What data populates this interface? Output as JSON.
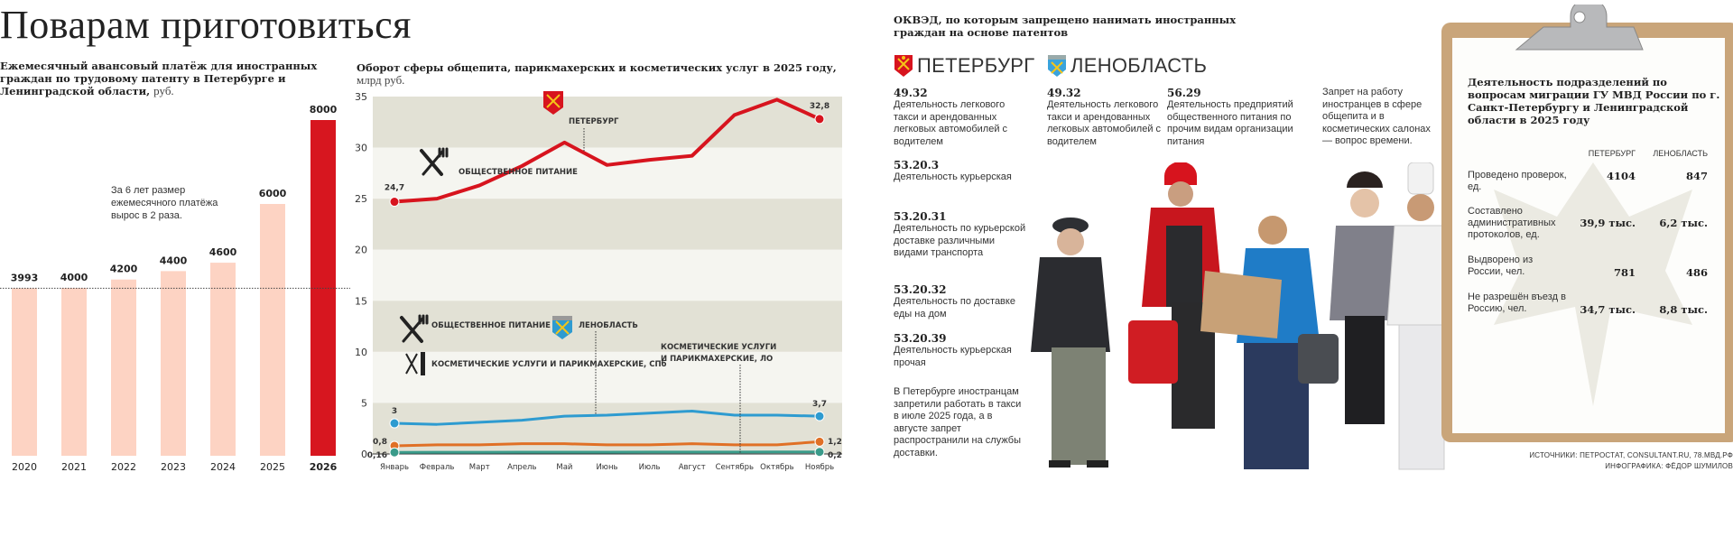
{
  "title": "Поварам приготовиться",
  "colors": {
    "spb": "#d7141e",
    "lo_blue": "#2e9bd0",
    "spb_cosmetic": "#e07026",
    "lo_cosmetic": "#3a9b8a",
    "bar_light": "#fdd3c3",
    "bar_dark": "#d7161f",
    "band_dark": "#e2e1d5",
    "band_light": "#f5f5f0",
    "clipboard": "#c9a57a"
  },
  "chart_data": [
    {
      "type": "bar",
      "title": "Ежемесячный авансовый платёж для иностранных граждан по трудовому патенту в Петербурге и Ленинградской области,",
      "unit": "руб.",
      "categories": [
        "2020",
        "2021",
        "2022",
        "2023",
        "2024",
        "2025",
        "2026"
      ],
      "values": [
        3993,
        4000,
        4200,
        4400,
        4600,
        6000,
        8000
      ],
      "labels": [
        "3993",
        "4000",
        "4200",
        "4400",
        "4600",
        "6000",
        "8000"
      ],
      "highlight": "2026",
      "annotation": "За 6 лет размер ежемесячного платёжа вырос в 2 раза.",
      "reference_line": 3993
    },
    {
      "type": "line",
      "title": "Оборот сферы общепита, парикмахерских и косметических услуг в 2025 году,",
      "unit": "млрд руб.",
      "categories": [
        "Январь",
        "Февраль",
        "Март",
        "Апрель",
        "Май",
        "Июнь",
        "Июль",
        "Август",
        "Сентябрь",
        "Октябрь",
        "Ноябрь"
      ],
      "yticks": [
        "0",
        "5",
        "10",
        "15",
        "20",
        "25",
        "30",
        "35"
      ],
      "ylim": [
        0,
        35
      ],
      "grid": "alternating horizontal bands",
      "series": [
        {
          "key": "spb_food",
          "values": [
            24.7,
            25.0,
            26.3,
            28.2,
            30.5,
            28.3,
            28.8,
            29.2,
            33.2,
            34.7,
            32.8
          ],
          "start_label": "24,7",
          "end_label": "32,8"
        },
        {
          "key": "lo_food",
          "values": [
            3.0,
            2.9,
            3.1,
            3.3,
            3.7,
            3.8,
            4.0,
            4.2,
            3.8,
            3.8,
            3.7
          ],
          "start_label": "3",
          "end_label": "3,7"
        },
        {
          "key": "spb_cosmetic",
          "values": [
            0.8,
            0.9,
            0.9,
            1.0,
            1.0,
            0.9,
            0.9,
            1.0,
            0.9,
            0.9,
            1.2
          ],
          "start_label": "0,8",
          "end_label": "1,2"
        },
        {
          "key": "lo_cosmetic",
          "values": [
            0.16,
            0.17,
            0.17,
            0.18,
            0.18,
            0.18,
            0.19,
            0.19,
            0.19,
            0.2,
            0.2
          ],
          "start_label": "0,16",
          "end_label": "0,2"
        }
      ],
      "annotations": {
        "spb": "ПЕТЕРБУРГ",
        "food_top": "ОБЩЕСТВЕННОЕ ПИТАНИЕ",
        "food_bottom": "ОБЩЕСТВЕННОЕ ПИТАНИЕ",
        "lo": "ЛЕНОБЛАСТЬ",
        "cosmetic_spb": "КОСМЕТИЧЕСКИЕ УСЛУГИ И ПАРИКМАХЕРСКИЕ, СПб",
        "cosmetic_lo_1": "КОСМЕТИЧЕСКИЕ УСЛУГИ",
        "cosmetic_lo_2": "И ПАРИКМАХЕРСКИЕ, ЛО"
      }
    }
  ],
  "okved": {
    "title": "ОКВЭД, по которым запрещено нанимать иностранных граждан на основе патентов",
    "spb_label": "ПЕТЕРБУРГ",
    "lo_label": "ЛЕНОБЛАСТЬ",
    "spb_items": [
      {
        "code": "49.32",
        "desc": "Деятельность легкового такси и арендованных легковых автомобилей с водителем"
      },
      {
        "code": "53.20.3",
        "desc": "Деятельность курьерская"
      },
      {
        "code": "53.20.31",
        "desc": "Деятельность по курьерской доставке различными видами транспорта"
      },
      {
        "code": "53.20.32",
        "desc": "Деятельность по доставке еды на дом"
      },
      {
        "code": "53.20.39",
        "desc": "Деятельность курьерская прочая"
      }
    ],
    "lo_items": [
      {
        "code": "49.32",
        "desc": "Деятельность легкового такси и арендованных легковых автомобилей с водителем"
      },
      {
        "code": "56.29",
        "desc": "Деятельность предприятий общественного питания по прочим видам организации питания"
      }
    ],
    "spb_note": "В Петербурге иностранцам запретили работать в такси в июле 2025 года, а в августе запрет распространили на службы доставки.",
    "future_note": "Запрет на работу иностранцев в сфере общепита и в косметических салонах — вопрос времени."
  },
  "migration": {
    "title": "Деятельность подразделений по вопросам миграции ГУ МВД России по г. Санкт-Петербургу и Ленинградской области в 2025 году",
    "col_spb": "ПЕТЕРБУРГ",
    "col_lo": "ЛЕНОБЛАСТЬ",
    "rows": [
      {
        "label": "Проведено проверок, ед.",
        "spb": "4104",
        "lo": "847"
      },
      {
        "label": "Составлено административных протоколов, ед.",
        "spb": "39,9 тыс.",
        "lo": "6,2 тыс."
      },
      {
        "label": "Выдворено из России, чел.",
        "spb": "781",
        "lo": "486"
      },
      {
        "label": "Не разрешён въезд в Россию, чел.",
        "spb": "34,7 тыс.",
        "lo": "8,8 тыс."
      }
    ]
  },
  "credits": {
    "sources": "ИСТОЧНИКИ: ПЕТРОСТАТ, CONSULTANT.RU, 78.МВД.РФ",
    "infographics": "ИНФОГРАФИКА: ФЁДОР ШУМИЛОВ"
  }
}
